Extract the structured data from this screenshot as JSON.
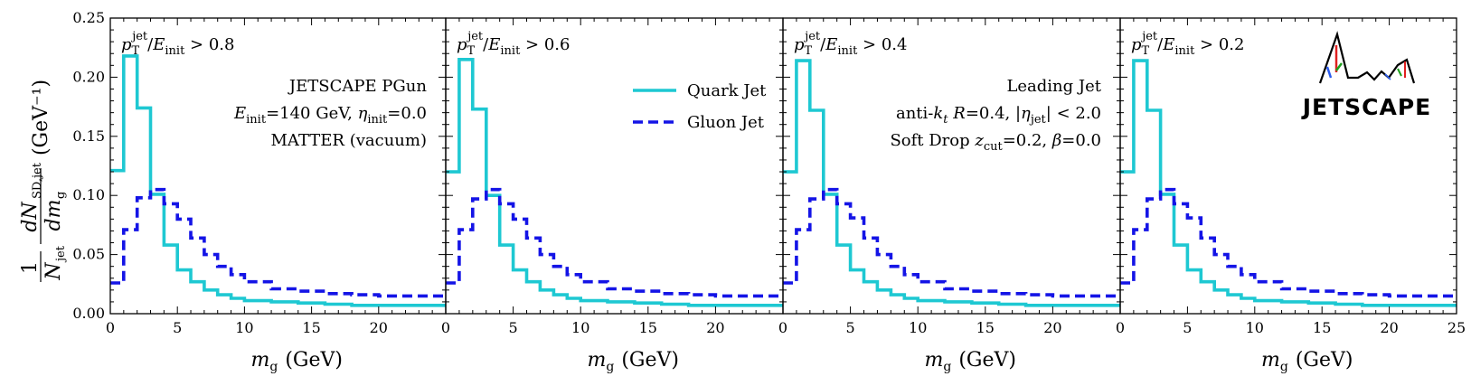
{
  "figure": {
    "ylabel_frac_num": "1",
    "ylabel_frac_den": "N",
    "ylabel_frac_den_sub": "jet",
    "ylabel_deriv_num": "dN",
    "ylabel_deriv_num_sub": "SD,jet",
    "ylabel_deriv_den": "dm",
    "ylabel_deriv_den_sub": "g",
    "ylabel_units": "(GeV⁻¹)",
    "xlabel_var": "m",
    "xlabel_sub": "g",
    "xlabel_units": "(GeV)",
    "logo_text": "JETSCAPE"
  },
  "annotations": {
    "left_block": {
      "line1": "JETSCAPE PGun",
      "line2_var": "E",
      "line2_sub": "init",
      "line2_rest": "=140 GeV, ",
      "line2_eta": "η",
      "line2_eta_sub": "init",
      "line2_eta_rest": "=0.0",
      "line3": "MATTER (vacuum)"
    },
    "right_block": {
      "line1": "Leading Jet",
      "line2_a": "anti-",
      "line2_k": "k",
      "line2_k_sub": "t",
      "line2_b": " R",
      "line2_c": "=0.4, |",
      "line2_eta": "η",
      "line2_eta_sub": "jet",
      "line2_d": "| < 2.0",
      "line3_a": "Soft Drop ",
      "line3_z": "z",
      "line3_z_sub": "cut",
      "line3_b": "=0.2, ",
      "line3_beta": "β",
      "line3_c": "=0.0"
    },
    "cut_label": {
      "p": "p",
      "p_sub": "T",
      "p_sup": "jet",
      "slash": "/",
      "e": "E",
      "e_sub": "init",
      "gt": " > "
    }
  },
  "chart_data": [
    {
      "type": "line",
      "drawstyle": "steps",
      "panel_title": "0.8",
      "xlim": [
        0,
        25
      ],
      "ylim": [
        0,
        0.25
      ],
      "xticks": [
        0,
        5,
        10,
        15,
        20
      ],
      "xtick_labels": [
        "0",
        "5",
        "10",
        "15",
        "20"
      ],
      "yticks": [
        0,
        0.05,
        0.1,
        0.15,
        0.2,
        0.25
      ],
      "ytick_labels": [
        "0.00",
        "0.05",
        "0.10",
        "0.15",
        "0.20",
        "0.25"
      ],
      "bin_edges": [
        0,
        1,
        2,
        3,
        4,
        5,
        6,
        7,
        8,
        9,
        10,
        12,
        14,
        16,
        18,
        20,
        25
      ],
      "series": [
        {
          "name": "Quark Jet",
          "color": "#1ec8d2",
          "style": "solid",
          "values": [
            0.121,
            0.218,
            0.174,
            0.101,
            0.058,
            0.037,
            0.027,
            0.02,
            0.016,
            0.013,
            0.011,
            0.01,
            0.009,
            0.008,
            0.007,
            0.007
          ]
        },
        {
          "name": "Gluon Jet",
          "color": "#1414e6",
          "style": "dashed",
          "values": [
            0.026,
            0.071,
            0.098,
            0.105,
            0.093,
            0.08,
            0.064,
            0.05,
            0.04,
            0.033,
            0.027,
            0.021,
            0.019,
            0.017,
            0.016,
            0.015
          ]
        }
      ]
    },
    {
      "type": "line",
      "drawstyle": "steps",
      "panel_title": "0.6",
      "xlim": [
        0,
        25
      ],
      "ylim": [
        0,
        0.25
      ],
      "xticks": [
        0,
        5,
        10,
        15,
        20
      ],
      "xtick_labels": [
        "0",
        "5",
        "10",
        "15",
        "20"
      ],
      "bin_edges": [
        0,
        1,
        2,
        3,
        4,
        5,
        6,
        7,
        8,
        9,
        10,
        12,
        14,
        16,
        18,
        20,
        25
      ],
      "series": [
        {
          "name": "Quark Jet",
          "color": "#1ec8d2",
          "style": "solid",
          "values": [
            0.12,
            0.215,
            0.173,
            0.1,
            0.058,
            0.037,
            0.027,
            0.02,
            0.016,
            0.013,
            0.011,
            0.01,
            0.009,
            0.008,
            0.007,
            0.007
          ]
        },
        {
          "name": "Gluon Jet",
          "color": "#1414e6",
          "style": "dashed",
          "values": [
            0.026,
            0.071,
            0.097,
            0.105,
            0.093,
            0.08,
            0.064,
            0.05,
            0.04,
            0.033,
            0.027,
            0.021,
            0.019,
            0.017,
            0.016,
            0.015
          ]
        }
      ]
    },
    {
      "type": "line",
      "drawstyle": "steps",
      "panel_title": "0.4",
      "xlim": [
        0,
        25
      ],
      "ylim": [
        0,
        0.25
      ],
      "xticks": [
        0,
        5,
        10,
        15,
        20
      ],
      "xtick_labels": [
        "0",
        "5",
        "10",
        "15",
        "20"
      ],
      "bin_edges": [
        0,
        1,
        2,
        3,
        4,
        5,
        6,
        7,
        8,
        9,
        10,
        12,
        14,
        16,
        18,
        20,
        25
      ],
      "series": [
        {
          "name": "Quark Jet",
          "color": "#1ec8d2",
          "style": "solid",
          "values": [
            0.12,
            0.214,
            0.172,
            0.101,
            0.058,
            0.037,
            0.027,
            0.02,
            0.016,
            0.013,
            0.011,
            0.01,
            0.009,
            0.008,
            0.007,
            0.007
          ]
        },
        {
          "name": "Gluon Jet",
          "color": "#1414e6",
          "style": "dashed",
          "values": [
            0.026,
            0.071,
            0.097,
            0.105,
            0.093,
            0.081,
            0.064,
            0.05,
            0.04,
            0.033,
            0.027,
            0.021,
            0.019,
            0.017,
            0.016,
            0.015
          ]
        }
      ]
    },
    {
      "type": "line",
      "drawstyle": "steps",
      "panel_title": "0.2",
      "xlim": [
        0,
        25
      ],
      "ylim": [
        0,
        0.25
      ],
      "xticks": [
        0,
        5,
        10,
        15,
        20,
        25
      ],
      "xtick_labels": [
        "0",
        "5",
        "10",
        "15",
        "20",
        "25"
      ],
      "bin_edges": [
        0,
        1,
        2,
        3,
        4,
        5,
        6,
        7,
        8,
        9,
        10,
        12,
        14,
        16,
        18,
        20,
        25
      ],
      "series": [
        {
          "name": "Quark Jet",
          "color": "#1ec8d2",
          "style": "solid",
          "values": [
            0.12,
            0.214,
            0.172,
            0.101,
            0.058,
            0.037,
            0.027,
            0.02,
            0.016,
            0.013,
            0.011,
            0.01,
            0.009,
            0.008,
            0.007,
            0.007
          ]
        },
        {
          "name": "Gluon Jet",
          "color": "#1414e6",
          "style": "dashed",
          "values": [
            0.026,
            0.071,
            0.097,
            0.105,
            0.093,
            0.081,
            0.064,
            0.05,
            0.04,
            0.033,
            0.027,
            0.021,
            0.019,
            0.017,
            0.016,
            0.015
          ]
        }
      ]
    }
  ]
}
